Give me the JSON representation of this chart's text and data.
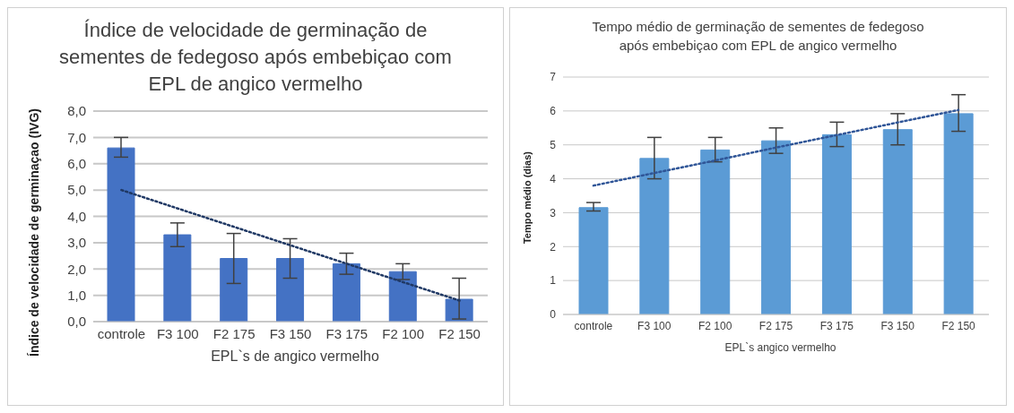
{
  "chart_data": [
    {
      "type": "bar",
      "title": "Índice de velocidade de germinação de sementes de fedegoso após embebiçao com EPL de angico vermelho",
      "xlabel": "EPL`s de angico vermelho",
      "ylabel": "Índice de velocidade de germinaçao (IVG)",
      "categories": [
        "controle",
        "F3 100",
        "F2 175",
        "F3 150",
        "F3 175",
        "F2 100",
        "F2 150"
      ],
      "ylim": [
        0,
        8
      ],
      "yticks": [
        {
          "value": 0,
          "label": "0,0"
        },
        {
          "value": 1,
          "label": "1,0"
        },
        {
          "value": 2,
          "label": "2,0"
        },
        {
          "value": 3,
          "label": "3,0"
        },
        {
          "value": 4,
          "label": "4,0"
        },
        {
          "value": 5,
          "label": "5,0"
        },
        {
          "value": 6,
          "label": "6,0"
        },
        {
          "value": 7,
          "label": "7,0"
        },
        {
          "value": 8,
          "label": "8,0"
        }
      ],
      "grid": "y",
      "series": [
        {
          "color": "#4472c4",
          "values": [
            6.6,
            3.3,
            2.4,
            2.4,
            2.2,
            1.9,
            0.85
          ],
          "errors": [
            [
              6.25,
              7.0
            ],
            [
              2.85,
              3.75
            ],
            [
              1.45,
              3.35
            ],
            [
              1.65,
              3.15
            ],
            [
              1.8,
              2.6
            ],
            [
              1.6,
              2.2
            ],
            [
              0.1,
              1.65
            ]
          ]
        },
        {
          "type": "line",
          "color": "#1f3864",
          "line_style": "dotted",
          "marker": "none",
          "values": [
            5.0,
            4.3,
            3.6,
            2.9,
            2.2,
            1.5,
            0.8
          ]
        }
      ]
    },
    {
      "type": "bar",
      "title": "Tempo médio de germinação de sementes de fedegoso após embebiçao com EPL de angico vermelho",
      "xlabel": "EPL`s angico vermelho",
      "ylabel": "Tempo médio (dias)",
      "categories": [
        "controle",
        "F3 100",
        "F2 100",
        "F2 175",
        "F3 175",
        "F3 150",
        "F2 150"
      ],
      "ylim": [
        0,
        7
      ],
      "yticks": [
        0,
        1,
        2,
        3,
        4,
        5,
        6,
        7
      ],
      "grid": "y",
      "series": [
        {
          "color": "#5b9bd5",
          "values": [
            3.15,
            4.6,
            4.85,
            5.12,
            5.3,
            5.45,
            5.92
          ],
          "errors": [
            [
              3.05,
              3.3
            ],
            [
              4.0,
              5.22
            ],
            [
              4.5,
              5.22
            ],
            [
              4.75,
              5.5
            ],
            [
              4.95,
              5.67
            ],
            [
              5.0,
              5.92
            ],
            [
              5.4,
              6.48
            ]
          ]
        },
        {
          "type": "line",
          "color": "#2f5597",
          "line_style": "dotted",
          "marker": "none",
          "values": [
            3.8,
            4.17,
            4.54,
            4.92,
            5.29,
            5.66,
            6.03
          ]
        }
      ]
    }
  ]
}
